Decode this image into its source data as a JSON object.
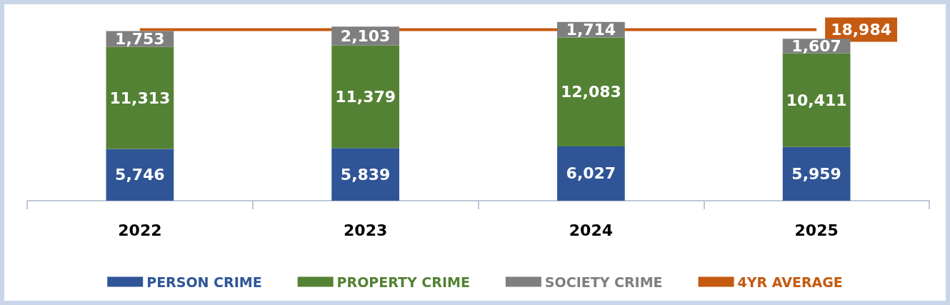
{
  "chart_data": {
    "type": "bar",
    "stacked": true,
    "categories": [
      "2022",
      "2023",
      "2024",
      "2025"
    ],
    "series": [
      {
        "name": "PERSON CRIME",
        "color": "#2f5597",
        "values": [
          5746,
          5839,
          6027,
          5959
        ],
        "value_labels": [
          "5,746",
          "5,839",
          "6,027",
          "5,959"
        ]
      },
      {
        "name": "PROPERTY CRIME",
        "color": "#548235",
        "values": [
          11313,
          11379,
          12083,
          10411
        ],
        "value_labels": [
          "11,313",
          "11,379",
          "12,083",
          "10,411"
        ]
      },
      {
        "name": "SOCIETY CRIME",
        "color": "#7f7f7f",
        "values": [
          1753,
          2103,
          1714,
          1607
        ],
        "value_labels": [
          "1,753",
          "2,103",
          "1,714",
          "1,607"
        ]
      },
      {
        "name": "4YR AVERAGE",
        "type": "line",
        "color": "#c55a11",
        "values": [
          18984,
          null,
          null,
          18984
        ],
        "value_labels": [
          null,
          null,
          null,
          "18,984"
        ]
      }
    ],
    "legend": "bottom",
    "grid": false,
    "marker": "none"
  }
}
